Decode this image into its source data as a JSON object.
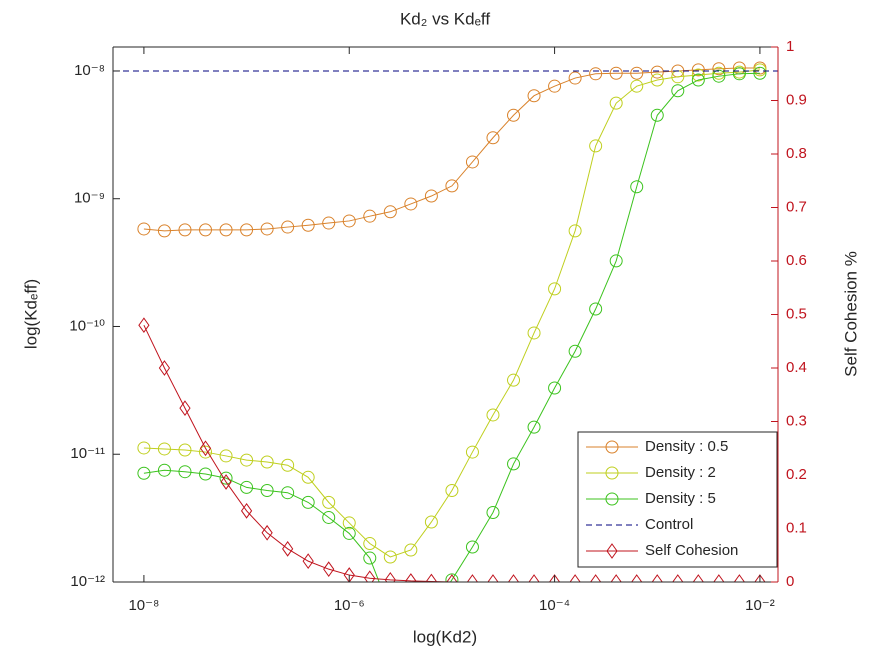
{
  "chart_data": {
    "type": "line",
    "title": "Kd₂ vs Kdₑff",
    "x_label": "log(Kd2)",
    "y_label": "log(Kdₑff)",
    "y2_label": "Self Cohesion %",
    "x": [
      1e-08,
      1.585e-08,
      2.512e-08,
      3.981e-08,
      6.31e-08,
      1e-07,
      1.585e-07,
      2.512e-07,
      3.981e-07,
      6.31e-07,
      1e-06,
      1.585e-06,
      2.512e-06,
      3.981e-06,
      6.31e-06,
      1e-05,
      1.585e-05,
      2.512e-05,
      3.981e-05,
      6.31e-05,
      0.0001,
      0.0001585,
      0.0002512,
      0.0003981,
      0.000631,
      0.001,
      0.001585,
      0.002512,
      0.003981,
      0.00631,
      0.01
    ],
    "xscale": "log",
    "yscale": "log",
    "xlim": [
      5e-09,
      0.015
    ],
    "ylim": [
      1e-12,
      1.54e-08
    ],
    "y2lim": [
      0,
      1
    ],
    "xticks": [
      {
        "value": 1e-08,
        "label": "10⁻⁸"
      },
      {
        "value": 1e-06,
        "label": "10⁻⁶"
      },
      {
        "value": 0.0001,
        "label": "10⁻⁴"
      },
      {
        "value": 0.01,
        "label": "10⁻²"
      }
    ],
    "yticks": [
      {
        "value": 1e-12,
        "label": "10⁻¹²"
      },
      {
        "value": 1e-11,
        "label": "10⁻¹¹"
      },
      {
        "value": 1e-10,
        "label": "10⁻¹⁰"
      },
      {
        "value": 1e-09,
        "label": "10⁻⁹"
      },
      {
        "value": 1e-08,
        "label": "10⁻⁸"
      }
    ],
    "y2ticks": [
      0,
      0.1,
      0.2,
      0.3,
      0.4,
      0.5,
      0.6,
      0.7,
      0.8,
      0.9,
      1
    ],
    "y2color": "#c0141e",
    "legend": "lower right",
    "series": [
      {
        "name": "Density : 0.5",
        "color": "#d9822b",
        "marker": "circle",
        "values": [
          5.8e-10,
          5.6e-10,
          5.7e-10,
          5.7e-10,
          5.7e-10,
          5.7e-10,
          5.8e-10,
          6e-10,
          6.2e-10,
          6.45e-10,
          6.7e-10,
          7.3e-10,
          7.9e-10,
          9.1e-10,
          1.05e-09,
          1.26e-09,
          1.94e-09,
          3e-09,
          4.5e-09,
          6.4e-09,
          7.6e-09,
          8.8e-09,
          9.5e-09,
          9.6e-09,
          9.6e-09,
          9.8e-09,
          1e-08,
          1.02e-08,
          1.04e-08,
          1.055e-08,
          1.055e-08
        ]
      },
      {
        "name": "Density : 2",
        "color": "#bfcf1e",
        "marker": "circle",
        "values": [
          1.12e-11,
          1.1e-11,
          1.08e-11,
          1.04e-11,
          9.7e-12,
          9e-12,
          8.7e-12,
          8.2e-12,
          6.6e-12,
          4.2e-12,
          2.9e-12,
          2e-12,
          1.57e-12,
          1.78e-12,
          2.95e-12,
          5.2e-12,
          1.04e-11,
          2.03e-11,
          3.8e-11,
          8.9e-11,
          1.97e-10,
          5.6e-10,
          2.59e-09,
          5.6e-09,
          7.6e-09,
          8.5e-09,
          9e-09,
          9.3e-09,
          9.6e-09,
          9.8e-09,
          1.02e-08
        ]
      },
      {
        "name": "Density : 5",
        "color": "#3cc31e",
        "marker": "circle",
        "values": [
          7.1e-12,
          7.5e-12,
          7.3e-12,
          7e-12,
          6.5e-12,
          5.5e-12,
          5.2e-12,
          5e-12,
          4.2e-12,
          3.2e-12,
          2.4e-12,
          1.54e-12,
          6e-13,
          4e-13,
          6e-13,
          1.04e-12,
          1.88e-12,
          3.5e-12,
          8.4e-12,
          1.63e-11,
          3.3e-11,
          6.4e-11,
          1.37e-10,
          3.26e-10,
          1.24e-09,
          4.5e-09,
          7e-09,
          8.5e-09,
          9.1e-09,
          9.5e-09,
          9.6e-09
        ]
      },
      {
        "name": "Control",
        "color": "#00007f",
        "line": "dashed",
        "hline": 1e-08
      },
      {
        "name": "Self Cohesion",
        "color": "#c0141e",
        "marker": "diamond",
        "axis": "y2",
        "values": [
          0.48,
          0.4,
          0.325,
          0.25,
          0.187,
          0.133,
          0.092,
          0.062,
          0.039,
          0.024,
          0.013,
          0.007,
          0.004,
          0.002,
          0.001,
          0,
          0,
          0,
          0,
          0,
          0,
          0,
          0,
          0,
          0,
          0,
          0,
          0,
          0,
          0,
          0
        ]
      }
    ]
  }
}
